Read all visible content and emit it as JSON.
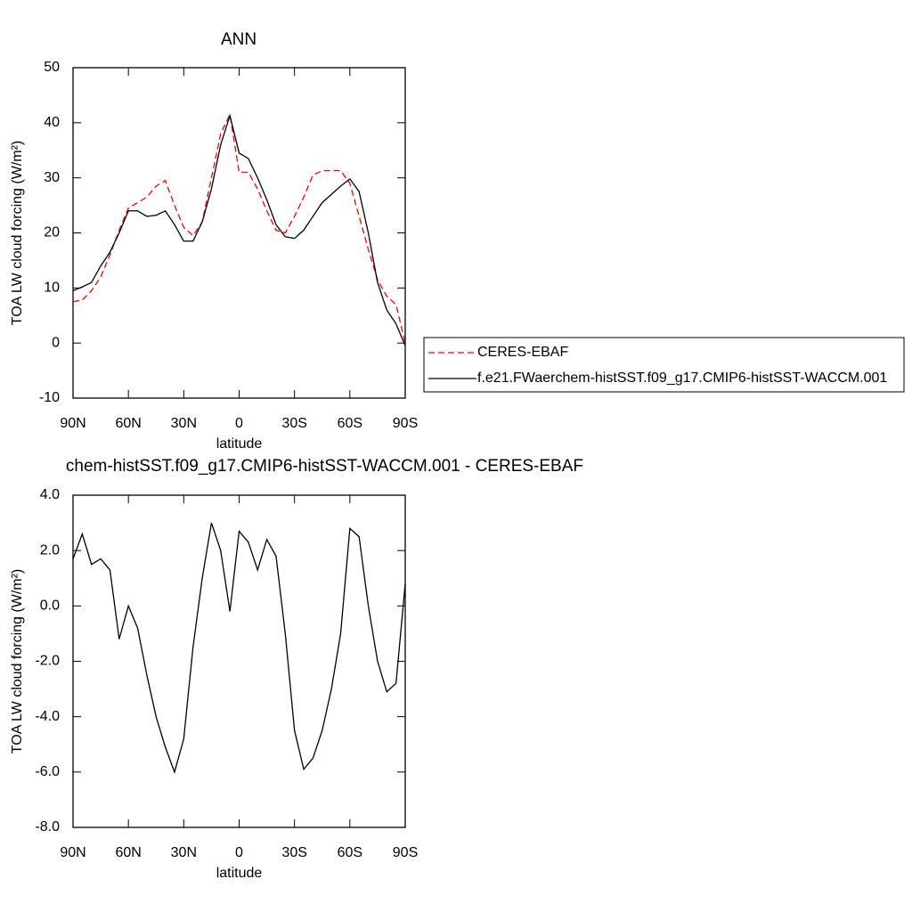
{
  "chart_data": [
    {
      "type": "line",
      "title": "ANN",
      "xlabel": "latitude",
      "ylabel": "TOA LW cloud forcing (W/m²)",
      "x": [
        90,
        85,
        80,
        75,
        70,
        65,
        60,
        55,
        50,
        45,
        40,
        35,
        30,
        25,
        20,
        15,
        10,
        5,
        0,
        -5,
        -10,
        -15,
        -20,
        -25,
        -30,
        -35,
        -40,
        -45,
        -50,
        -55,
        -60,
        -65,
        -70,
        -75,
        -80,
        -85,
        -90
      ],
      "series": [
        {
          "name": "CERES-EBAF",
          "color": "#ff0000",
          "line_style": "dashed",
          "values": [
            7.5,
            7.8,
            9.5,
            12,
            16,
            20.5,
            24.5,
            25.5,
            26.5,
            28.5,
            29.5,
            25,
            21,
            19.5,
            22,
            30,
            38,
            41.5,
            31,
            31,
            28,
            24,
            20.5,
            20,
            23,
            26.5,
            30.5,
            31.3,
            31.3,
            31.3,
            29,
            23,
            17,
            11.5,
            8.5,
            7,
            0
          ]
        },
        {
          "name": "f.e21.FWaerchem-histSST.f09_g17.CMIP6-histSST-WACCM.001",
          "color": "#000000",
          "line_style": "solid",
          "values": [
            9.5,
            10.2,
            11,
            14,
            16.5,
            20,
            24,
            24,
            23,
            23.2,
            24,
            21.5,
            18.5,
            18.5,
            22,
            28,
            36,
            41.3,
            34.5,
            33.5,
            30,
            26,
            21.5,
            19.3,
            19,
            20.5,
            23,
            25.5,
            27,
            28.5,
            29.8,
            27.5,
            20,
            11,
            6,
            3.5,
            -0.5
          ]
        }
      ],
      "xlim": [
        90,
        -90
      ],
      "xticks": [
        {
          "value": 90,
          "label": "90N"
        },
        {
          "value": 60,
          "label": "60N"
        },
        {
          "value": 30,
          "label": "30N"
        },
        0,
        {
          "value": -30,
          "label": "30S"
        },
        {
          "value": -60,
          "label": "60S"
        },
        {
          "value": -90,
          "label": "90S"
        }
      ],
      "ylim": [
        -10,
        50
      ],
      "yticks": [
        -10,
        0,
        10,
        20,
        30,
        40,
        50
      ],
      "legend": "right"
    },
    {
      "type": "line",
      "title": "chem-histSST.f09_g17.CMIP6-histSST-WACCM.001 - CERES-EBAF",
      "xlabel": "latitude",
      "ylabel": "TOA LW cloud forcing (W/m²)",
      "x": [
        90,
        85,
        80,
        75,
        70,
        65,
        60,
        55,
        50,
        45,
        40,
        35,
        30,
        25,
        20,
        15,
        10,
        5,
        0,
        -5,
        -10,
        -15,
        -20,
        -25,
        -30,
        -35,
        -40,
        -45,
        -50,
        -55,
        -60,
        -65,
        -70,
        -75,
        -80,
        -85,
        -90
      ],
      "values": [
        1.7,
        2.6,
        1.5,
        1.7,
        1.3,
        -1.2,
        0.0,
        -0.8,
        -2.5,
        -4.0,
        -5.1,
        -6.0,
        -4.8,
        -1.5,
        1.0,
        3.0,
        2.0,
        -0.2,
        2.7,
        2.3,
        1.3,
        2.4,
        1.8,
        -1.0,
        -4.5,
        -5.9,
        -5.5,
        -4.5,
        -3.0,
        -1.0,
        2.8,
        2.5,
        0.0,
        -2.0,
        -3.1,
        -2.8,
        0.8
      ],
      "color": "#000000",
      "xlim": [
        90,
        -90
      ],
      "xticks": [
        {
          "value": 90,
          "label": "90N"
        },
        {
          "value": 60,
          "label": "60N"
        },
        {
          "value": 30,
          "label": "30N"
        },
        0,
        {
          "value": -30,
          "label": "30S"
        },
        {
          "value": -60,
          "label": "60S"
        },
        {
          "value": -90,
          "label": "90S"
        }
      ],
      "ylim": [
        -8,
        4
      ],
      "yticks": [
        {
          "value": -8,
          "label": "-8.0"
        },
        {
          "value": -6,
          "label": "-6.0"
        },
        {
          "value": -4,
          "label": "-4.0"
        },
        {
          "value": -2,
          "label": "-2.0"
        },
        {
          "value": 0,
          "label": "0.0"
        },
        {
          "value": 2,
          "label": "2.0"
        },
        {
          "value": 4,
          "label": "4.0"
        }
      ]
    }
  ]
}
